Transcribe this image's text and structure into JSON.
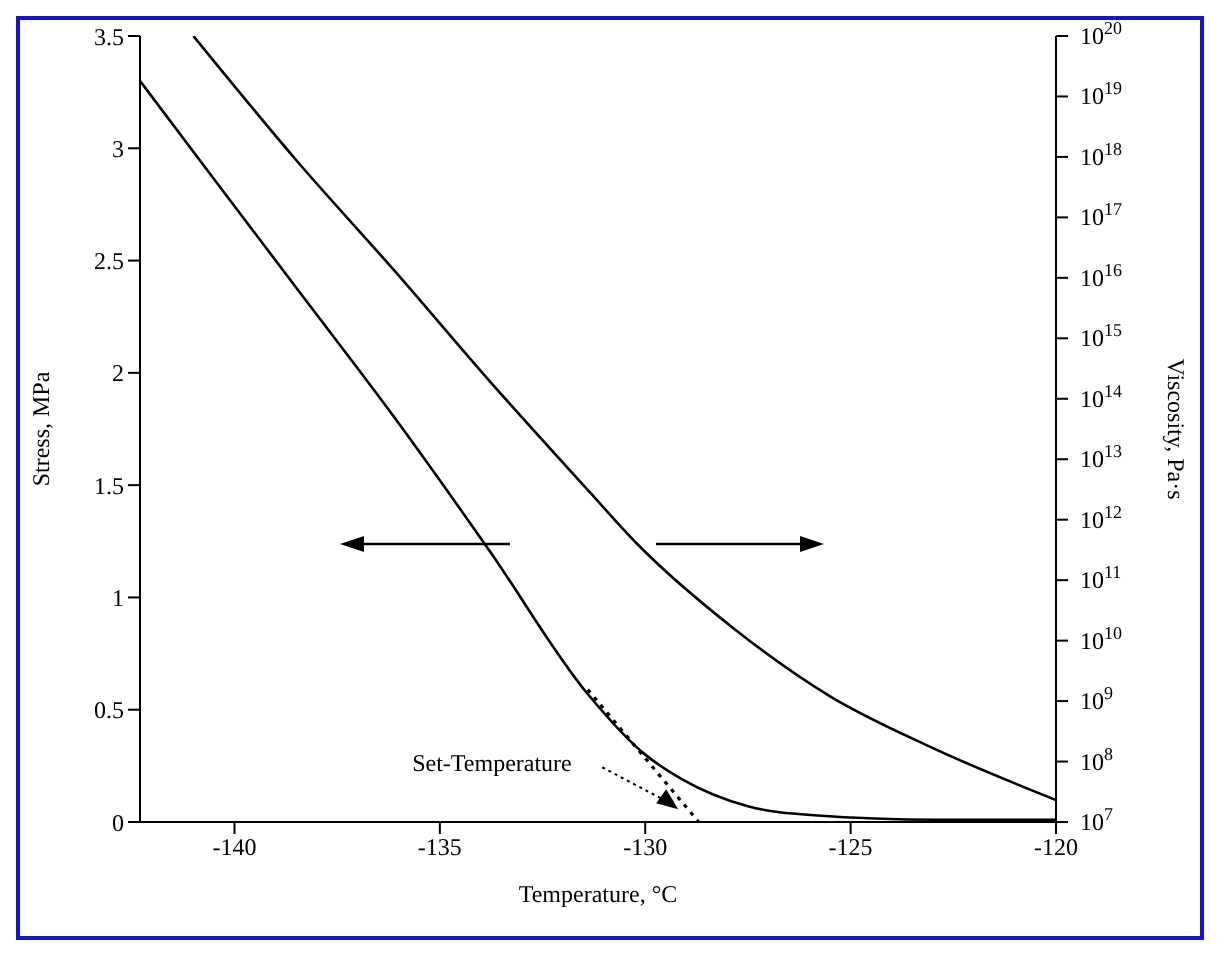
{
  "chart_data": {
    "type": "line",
    "xlabel": "Temperature, °C",
    "ylabel": "Stress, MPa",
    "y2label": "Viscosity, Pa·s",
    "xlim": [
      -142.3,
      -120
    ],
    "xticks": [
      -140,
      -135,
      -130,
      -125,
      -120
    ],
    "ylim": [
      0,
      3.5
    ],
    "yticks": [
      0,
      0.5,
      1,
      1.5,
      2,
      2.5,
      3,
      3.5
    ],
    "y2lim": [
      10000000.0,
      1e+20
    ],
    "y2ticks": [
      {
        "value": 10000000.0,
        "label": "10$^{7}$"
      },
      {
        "value": 100000000.0,
        "label": "10$^{8}$"
      },
      {
        "value": 1000000000.0,
        "label": "10$^{9}$"
      },
      {
        "value": 10000000000.0,
        "label": "10$^{10}$"
      },
      {
        "value": 100000000000.0,
        "label": "10$^{11}$"
      },
      {
        "value": 1000000000000.0,
        "label": "10$^{12}$"
      },
      {
        "value": 10000000000000.0,
        "label": "10$^{13}$"
      },
      {
        "value": 100000000000000.0,
        "label": "10$^{14}$"
      },
      {
        "value": 1000000000000000.0,
        "label": "10$^{15}$"
      },
      {
        "value": 1e+16,
        "label": "10$^{16}$"
      },
      {
        "value": 1e+17,
        "label": "10$^{17}$"
      },
      {
        "value": 1e+18,
        "label": "10$^{18}$"
      },
      {
        "value": 1e+19,
        "label": "10$^{19}$"
      },
      {
        "value": 1e+20,
        "label": "10$^{20}$"
      }
    ],
    "log": "y2",
    "marker": "none",
    "line_style": "solid",
    "series": [
      {
        "color": "#000000",
        "x": [
          -142.3,
          -140.9,
          -138.5,
          -136.1,
          -133.8,
          -131.4,
          -130.0,
          -129.1,
          -127.5,
          -125.9,
          -122.9,
          -120
        ],
        "values": [
          3.3,
          2.96,
          2.38,
          1.8,
          1.21,
          0.57,
          0.3,
          0.19,
          0.07,
          0.03,
          0.01,
          0.01
        ]
      },
      {
        "color": "#000000",
        "axis": "y2",
        "x": [
          -141.0,
          -138.5,
          -136.1,
          -133.8,
          -131.4,
          -130.2,
          -127.8,
          -125.5,
          -123.1,
          -120
        ],
        "values": [
          1e+20,
          8.9e+17,
          1.3e+16,
          200000000000000.0,
          3100000000000.0,
          400000000000.0,
          15000000000.0,
          1200000000.0,
          180000000.0,
          23000000.0
        ]
      },
      {
        "color": "#000000",
        "line_style": "dotted",
        "x": [
          -131.4,
          -128.7
        ],
        "values": [
          0.59,
          0
        ]
      }
    ],
    "annotations": [
      {
        "text": "Set-Temperature",
        "x": -129.1,
        "y": 0.03
      }
    ]
  }
}
